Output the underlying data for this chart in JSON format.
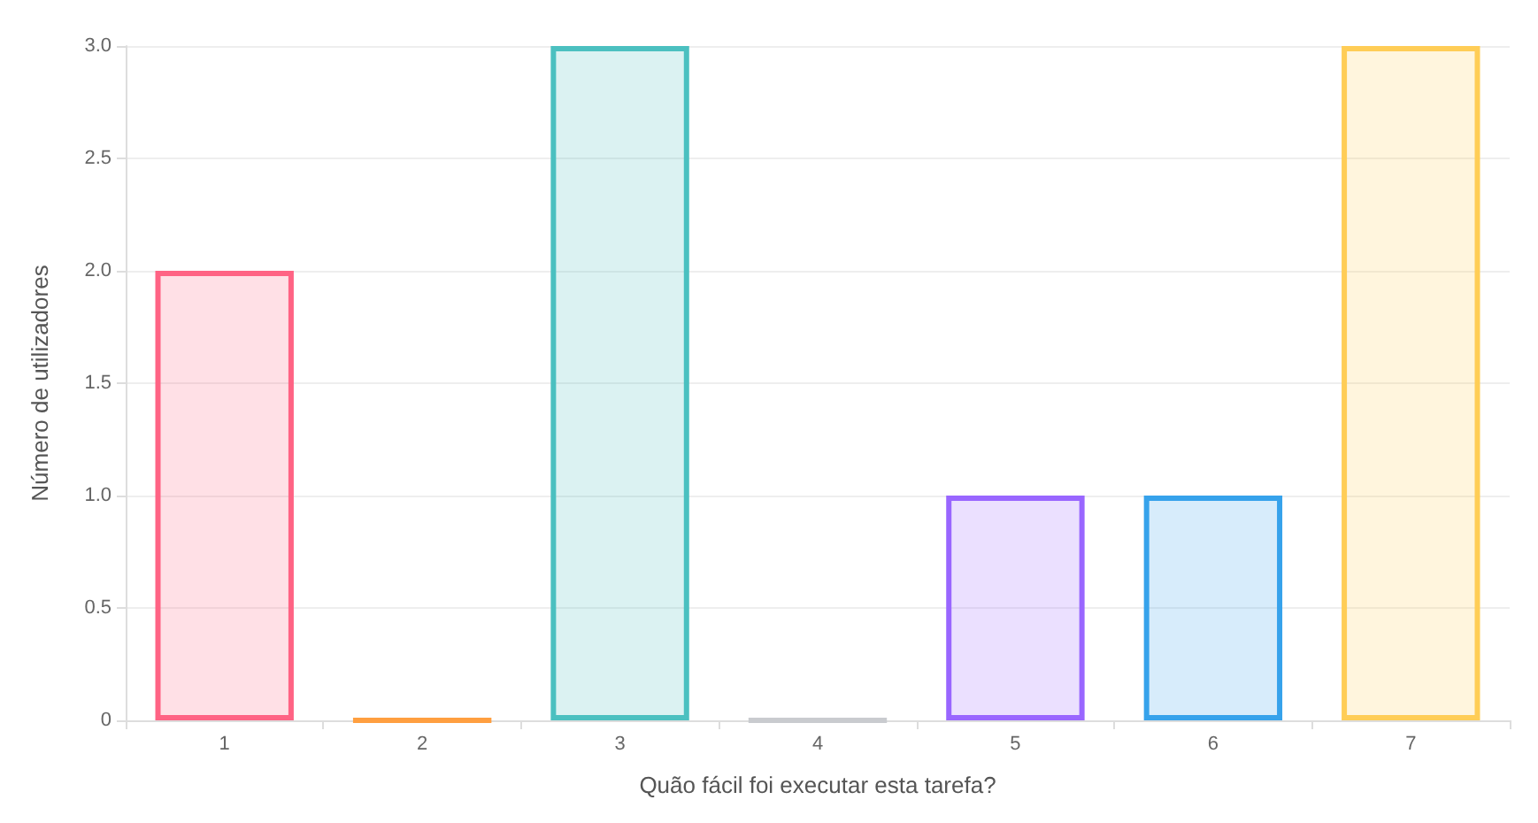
{
  "chart_data": {
    "type": "bar",
    "xlabel": "Quão fácil foi executar esta tarefa?",
    "ylabel": "Número de utilizadores",
    "categories": [
      "1",
      "2",
      "3",
      "4",
      "5",
      "6",
      "7"
    ],
    "values": [
      2,
      0,
      3,
      0,
      1,
      1,
      3
    ],
    "colors": [
      "#ff6384",
      "#ff9f40",
      "#4bc0c0",
      "#c9cbcf",
      "#9966ff",
      "#36a2eb",
      "#ffcd56"
    ],
    "ylim": [
      0,
      3
    ],
    "yticks": [
      0,
      0.5,
      {
        "value": 1,
        "label": "1.0"
      },
      1.5,
      {
        "value": 2,
        "label": "2.0"
      },
      2.5,
      {
        "value": 3,
        "label": "3.0"
      }
    ],
    "grid": "y"
  }
}
